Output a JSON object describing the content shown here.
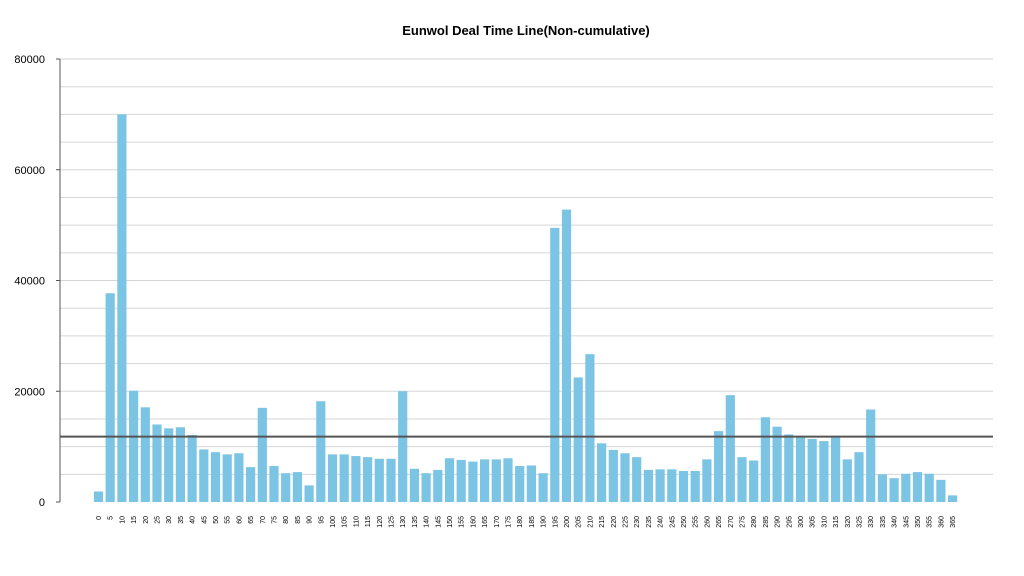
{
  "chart_data": {
    "type": "bar",
    "title": "Eunwol Deal Time Line(Non-cumulative)",
    "xlabel": "",
    "ylabel": "",
    "ylim": [
      0,
      80000
    ],
    "yticks": [
      0,
      20000,
      40000,
      60000,
      80000
    ],
    "grid": true,
    "reference_line": 11800,
    "bar_color": "#7cc4e4",
    "categories": [
      "0",
      "5",
      "10",
      "15",
      "20",
      "25",
      "30",
      "35",
      "40",
      "45",
      "50",
      "55",
      "60",
      "65",
      "70",
      "75",
      "80",
      "85",
      "90",
      "95",
      "100",
      "105",
      "110",
      "115",
      "120",
      "125",
      "130",
      "135",
      "140",
      "145",
      "150",
      "155",
      "160",
      "165",
      "170",
      "175",
      "180",
      "185",
      "190",
      "195",
      "200",
      "205",
      "210",
      "215",
      "220",
      "225",
      "230",
      "235",
      "240",
      "245",
      "250",
      "255",
      "260",
      "265",
      "270",
      "275",
      "280",
      "285",
      "290",
      "295",
      "300",
      "305",
      "310",
      "315",
      "320",
      "325",
      "330",
      "335",
      "340",
      "345",
      "350",
      "355",
      "360",
      "365"
    ],
    "values": [
      1900,
      37700,
      70000,
      20100,
      17100,
      14000,
      13300,
      13500,
      12100,
      9500,
      9000,
      8600,
      8800,
      6300,
      17000,
      6500,
      5200,
      5400,
      3000,
      18200,
      8600,
      8600,
      8300,
      8100,
      7800,
      7800,
      20000,
      6000,
      5200,
      5800,
      7900,
      7600,
      7300,
      7700,
      7700,
      7900,
      6500,
      6600,
      5200,
      49500,
      52800,
      22500,
      26700,
      10600,
      9400,
      8800,
      8100,
      5800,
      5900,
      5900,
      5600,
      5600,
      7700,
      12800,
      19300,
      8100,
      7500,
      15300,
      13600,
      12200,
      11800,
      11400,
      11000,
      11900,
      7700,
      9000,
      16700,
      5000,
      4300,
      5100,
      5400,
      5100,
      4000,
      1200
    ]
  }
}
